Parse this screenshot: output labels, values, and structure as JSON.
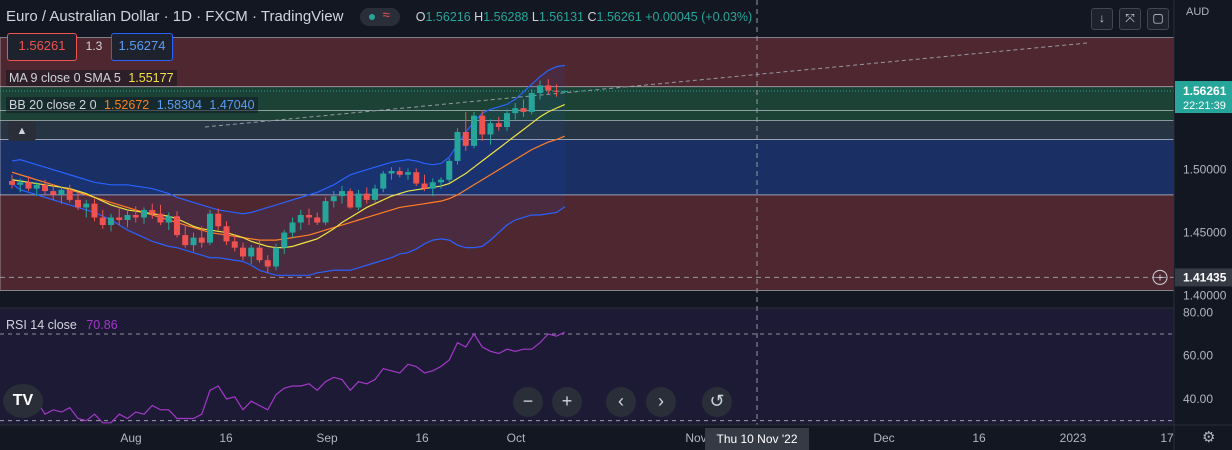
{
  "header": {
    "symbol_title": "Euro / Australian Dollar",
    "interval": "1D",
    "source": "FXCM",
    "platform": "TradingView",
    "open_label": "O",
    "open": "1.56216",
    "high_label": "H",
    "high": "1.56288",
    "low_label": "L",
    "low": "1.56131",
    "close_label": "C",
    "close": "1.56261",
    "change": "+0.00045 (+0.03%)"
  },
  "trade": {
    "sell_price": "1.56261",
    "spread": "1.3",
    "buy_price": "1.56274"
  },
  "indicators": {
    "ma_label": "MA 9 close 0 SMA 5",
    "ma_value": "1.55177",
    "bb_label": "BB 20 close 2 0",
    "bb_basis": "1.52672",
    "bb_upper": "1.58304",
    "bb_lower": "1.47040",
    "rsi_label": "RSI 14 close",
    "rsi_value": "70.86"
  },
  "toolbar": {
    "currency": "AUD",
    "collapse_icon": "chevron-up-icon",
    "zoom_out": "−",
    "zoom_in": "+",
    "scroll_left": "‹",
    "scroll_right": "›",
    "reset": "↺"
  },
  "colors": {
    "up": "#26a69a",
    "down": "#ef5350",
    "ma": "#f0e442",
    "bb_basis": "#ff7f27",
    "bb_band": "#2962ff",
    "rsi": "#a338c8",
    "zone_red": "#5a2a33",
    "zone_blue": "#1c3470",
    "zone_green": "#1f4a3a",
    "zone_grey": "#2c3a4a"
  },
  "crosshair": {
    "date_label": "Thu 10 Nov '22"
  },
  "price_labels": {
    "last": "1.56261",
    "countdown": "22:21:39",
    "crosshair": "1.41435"
  },
  "chart_data": {
    "type": "candlestick",
    "price_axis": {
      "ticks": [
        "1.50000",
        "1.45000",
        "1.40000"
      ],
      "ylim": [
        1.39,
        1.635
      ]
    },
    "rsi_axis": {
      "ticks": [
        "80.00",
        "60.00",
        "40.00"
      ],
      "ylim": [
        28,
        82
      ],
      "levels": [
        70,
        30
      ]
    },
    "x_axis": {
      "ticks": [
        "Aug",
        "16",
        "Sep",
        "16",
        "Oct",
        "Nov",
        "Dec",
        "16",
        "2023",
        "17"
      ]
    },
    "candles": [
      [
        1.491,
        1.496,
        1.485,
        1.488
      ],
      [
        1.488,
        1.493,
        1.482,
        1.49
      ],
      [
        1.49,
        1.495,
        1.483,
        1.485
      ],
      [
        1.485,
        1.49,
        1.479,
        1.488
      ],
      [
        1.488,
        1.492,
        1.48,
        1.483
      ],
      [
        1.483,
        1.488,
        1.476,
        1.48
      ],
      [
        1.48,
        1.486,
        1.473,
        1.484
      ],
      [
        1.484,
        1.488,
        1.474,
        1.476
      ],
      [
        1.476,
        1.482,
        1.468,
        1.47
      ],
      [
        1.47,
        1.476,
        1.462,
        1.473
      ],
      [
        1.473,
        1.477,
        1.459,
        1.462
      ],
      [
        1.462,
        1.468,
        1.453,
        1.456
      ],
      [
        1.456,
        1.465,
        1.451,
        1.462
      ],
      [
        1.462,
        1.47,
        1.456,
        1.46
      ],
      [
        1.46,
        1.468,
        1.454,
        1.464
      ],
      [
        1.464,
        1.471,
        1.458,
        1.462
      ],
      [
        1.462,
        1.47,
        1.457,
        1.468
      ],
      [
        1.468,
        1.473,
        1.461,
        1.465
      ],
      [
        1.465,
        1.472,
        1.456,
        1.458
      ],
      [
        1.458,
        1.466,
        1.452,
        1.463
      ],
      [
        1.463,
        1.467,
        1.446,
        1.448
      ],
      [
        1.448,
        1.456,
        1.438,
        1.44
      ],
      [
        1.44,
        1.45,
        1.435,
        1.446
      ],
      [
        1.446,
        1.455,
        1.438,
        1.442
      ],
      [
        1.442,
        1.468,
        1.44,
        1.465
      ],
      [
        1.465,
        1.469,
        1.452,
        1.455
      ],
      [
        1.455,
        1.459,
        1.44,
        1.443
      ],
      [
        1.443,
        1.448,
        1.435,
        1.438
      ],
      [
        1.438,
        1.442,
        1.428,
        1.431
      ],
      [
        1.431,
        1.44,
        1.425,
        1.438
      ],
      [
        1.438,
        1.444,
        1.426,
        1.428
      ],
      [
        1.428,
        1.432,
        1.418,
        1.423
      ],
      [
        1.423,
        1.441,
        1.42,
        1.438
      ],
      [
        1.438,
        1.452,
        1.433,
        1.45
      ],
      [
        1.45,
        1.462,
        1.446,
        1.458
      ],
      [
        1.458,
        1.468,
        1.452,
        1.464
      ],
      [
        1.464,
        1.469,
        1.456,
        1.462
      ],
      [
        1.462,
        1.466,
        1.456,
        1.458
      ],
      [
        1.458,
        1.478,
        1.456,
        1.475
      ],
      [
        1.475,
        1.483,
        1.47,
        1.479
      ],
      [
        1.479,
        1.487,
        1.473,
        1.483
      ],
      [
        1.483,
        1.485,
        1.469,
        1.47
      ],
      [
        1.47,
        1.484,
        1.468,
        1.481
      ],
      [
        1.481,
        1.486,
        1.473,
        1.476
      ],
      [
        1.476,
        1.488,
        1.474,
        1.485
      ],
      [
        1.485,
        1.499,
        1.482,
        1.497
      ],
      [
        1.497,
        1.502,
        1.492,
        1.499
      ],
      [
        1.499,
        1.502,
        1.494,
        1.496
      ],
      [
        1.496,
        1.501,
        1.492,
        1.498
      ],
      [
        1.498,
        1.501,
        1.487,
        1.489
      ],
      [
        1.489,
        1.496,
        1.483,
        1.485
      ],
      [
        1.485,
        1.493,
        1.479,
        1.49
      ],
      [
        1.49,
        1.494,
        1.485,
        1.492
      ],
      [
        1.492,
        1.509,
        1.49,
        1.507
      ],
      [
        1.507,
        1.533,
        1.504,
        1.53
      ],
      [
        1.53,
        1.546,
        1.515,
        1.519
      ],
      [
        1.519,
        1.546,
        1.517,
        1.543
      ],
      [
        1.543,
        1.547,
        1.523,
        1.528
      ],
      [
        1.528,
        1.54,
        1.52,
        1.537
      ],
      [
        1.537,
        1.542,
        1.531,
        1.534
      ],
      [
        1.534,
        1.548,
        1.531,
        1.545
      ],
      [
        1.545,
        1.553,
        1.54,
        1.549
      ],
      [
        1.549,
        1.556,
        1.542,
        1.546
      ],
      [
        1.546,
        1.564,
        1.544,
        1.561
      ],
      [
        1.561,
        1.571,
        1.556,
        1.567
      ],
      [
        1.567,
        1.572,
        1.56,
        1.563
      ],
      [
        1.563,
        1.568,
        1.558,
        1.562
      ],
      [
        1.562,
        1.563,
        1.561,
        1.5626
      ]
    ],
    "ma": [
      1.492,
      1.491,
      1.49,
      1.489,
      1.488,
      1.487,
      1.486,
      1.485,
      1.483,
      1.481,
      1.478,
      1.475,
      1.472,
      1.47,
      1.468,
      1.467,
      1.466,
      1.465,
      1.464,
      1.463,
      1.461,
      1.458,
      1.455,
      1.453,
      1.452,
      1.451,
      1.45,
      1.448,
      1.446,
      1.443,
      1.441,
      1.439,
      1.438,
      1.438,
      1.439,
      1.441,
      1.443,
      1.445,
      1.449,
      1.453,
      1.458,
      1.462,
      1.466,
      1.47,
      1.473,
      1.476,
      1.479,
      1.481,
      1.483,
      1.484,
      1.485,
      1.486,
      1.487,
      1.489,
      1.493,
      1.497,
      1.502,
      1.507,
      1.512,
      1.517,
      1.522,
      1.527,
      1.532,
      1.537,
      1.542,
      1.546,
      1.549,
      1.5518
    ],
    "bb_basis": [
      1.498,
      1.496,
      1.494,
      1.492,
      1.49,
      1.488,
      1.486,
      1.484,
      1.482,
      1.48,
      1.478,
      1.476,
      1.474,
      1.472,
      1.47,
      1.468,
      1.466,
      1.464,
      1.462,
      1.46,
      1.458,
      1.456,
      1.454,
      1.452,
      1.45,
      1.449,
      1.448,
      1.447,
      1.446,
      1.445,
      1.444,
      1.444,
      1.444,
      1.445,
      1.446,
      1.447,
      1.448,
      1.45,
      1.452,
      1.454,
      1.456,
      1.458,
      1.46,
      1.462,
      1.464,
      1.466,
      1.468,
      1.47,
      1.471,
      1.472,
      1.473,
      1.474,
      1.475,
      1.477,
      1.48,
      1.484,
      1.488,
      1.492,
      1.496,
      1.5,
      1.504,
      1.508,
      1.512,
      1.516,
      1.519,
      1.522,
      1.524,
      1.5267
    ],
    "bb_upper": [
      1.507,
      1.508,
      1.506,
      1.504,
      1.502,
      1.5,
      1.498,
      1.496,
      1.494,
      1.492,
      1.49,
      1.489,
      1.488,
      1.488,
      1.488,
      1.487,
      1.486,
      1.485,
      1.483,
      1.481,
      1.478,
      1.476,
      1.474,
      1.472,
      1.47,
      1.468,
      1.467,
      1.466,
      1.465,
      1.466,
      1.468,
      1.47,
      1.472,
      1.474,
      1.476,
      1.478,
      1.48,
      1.482,
      1.485,
      1.488,
      1.492,
      1.496,
      1.498,
      1.5,
      1.502,
      1.504,
      1.506,
      1.507,
      1.508,
      1.507,
      1.505,
      1.504,
      1.505,
      1.51,
      1.52,
      1.53,
      1.538,
      1.545,
      1.548,
      1.55,
      1.552,
      1.556,
      1.562,
      1.568,
      1.574,
      1.579,
      1.582,
      1.583
    ],
    "bb_lower": [
      1.489,
      1.484,
      1.482,
      1.48,
      1.478,
      1.476,
      1.474,
      1.472,
      1.47,
      1.468,
      1.466,
      1.463,
      1.46,
      1.456,
      1.452,
      1.449,
      1.446,
      1.443,
      1.441,
      1.439,
      1.438,
      1.436,
      1.434,
      1.432,
      1.43,
      1.43,
      1.429,
      1.428,
      1.427,
      1.424,
      1.42,
      1.418,
      1.416,
      1.416,
      1.416,
      1.416,
      1.416,
      1.418,
      1.419,
      1.42,
      1.42,
      1.42,
      1.422,
      1.424,
      1.426,
      1.428,
      1.43,
      1.433,
      1.434,
      1.437,
      1.441,
      1.444,
      1.445,
      1.444,
      1.44,
      1.438,
      1.438,
      1.439,
      1.444,
      1.45,
      1.456,
      1.46,
      1.462,
      1.464,
      1.464,
      1.465,
      1.466,
      1.4704
    ],
    "rsi": [
      35,
      37,
      36,
      39,
      33,
      35,
      34,
      36,
      31,
      30,
      33,
      29,
      29,
      33,
      31,
      34,
      33,
      37,
      35,
      35,
      31,
      31,
      31,
      33,
      44,
      46,
      40,
      41,
      35,
      39,
      37,
      35,
      42,
      45,
      46,
      46,
      47,
      44,
      48,
      50,
      49,
      44,
      48,
      47,
      49,
      54,
      53,
      52,
      56,
      55,
      52,
      53,
      55,
      58,
      66,
      64,
      70,
      64,
      62,
      61,
      63,
      62,
      63,
      63,
      66,
      70,
      69,
      70.86
    ],
    "zones": [
      {
        "color": "zone_red",
        "from": 1.48,
        "to": 1.404
      },
      {
        "color": "zone_blue",
        "from": 1.524,
        "to": 1.48
      },
      {
        "color": "zone_grey",
        "from": 1.539,
        "to": 1.524
      },
      {
        "color": "zone_green",
        "from": 1.547,
        "to": 1.539
      },
      {
        "color": "zone_green",
        "from": 1.566,
        "to": 1.547
      },
      {
        "color": "zone_red",
        "from": 1.605,
        "to": 1.566
      }
    ]
  }
}
